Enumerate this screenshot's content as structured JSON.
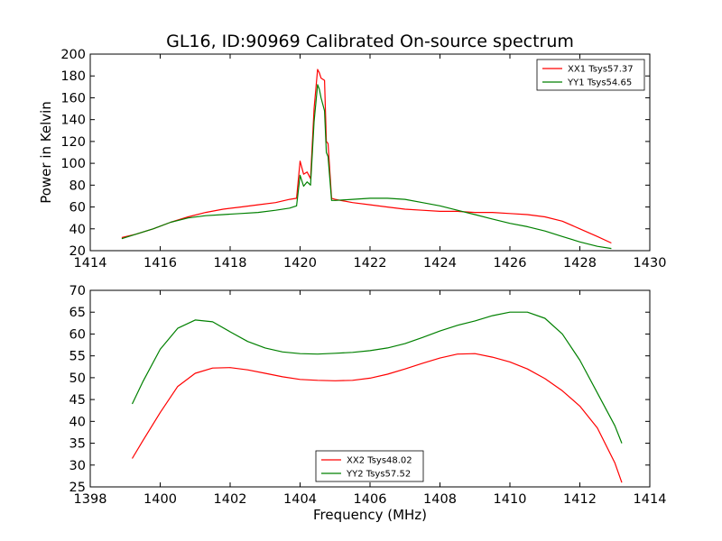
{
  "chart_data": [
    {
      "type": "line",
      "title": "GL16, ID:90969 Calibrated On-source spectrum",
      "xlabel": "",
      "ylabel": "Power in Kelvin",
      "xlim": [
        1414,
        1430
      ],
      "ylim": [
        20,
        200
      ],
      "xticks": [
        "1414",
        "1416",
        "1418",
        "1420",
        "1422",
        "1424",
        "1426",
        "1428",
        "1430"
      ],
      "yticks": [
        "20",
        "40",
        "60",
        "80",
        "100",
        "120",
        "140",
        "160",
        "180",
        "200"
      ],
      "grid": false,
      "legend_position": "upper right",
      "series": [
        {
          "name": "XX1 Tsys57.37",
          "color": "#ff0000",
          "points": [
            [
              1414.9,
              32
            ],
            [
              1415.3,
              35
            ],
            [
              1415.8,
              40
            ],
            [
              1416.3,
              46
            ],
            [
              1416.8,
              51
            ],
            [
              1417.3,
              55
            ],
            [
              1417.8,
              58
            ],
            [
              1418.3,
              60
            ],
            [
              1418.8,
              62
            ],
            [
              1419.3,
              64
            ],
            [
              1419.7,
              67
            ],
            [
              1419.9,
              68
            ],
            [
              1420.0,
              102
            ],
            [
              1420.1,
              90
            ],
            [
              1420.2,
              92
            ],
            [
              1420.3,
              86
            ],
            [
              1420.4,
              150
            ],
            [
              1420.5,
              186
            ],
            [
              1420.55,
              183
            ],
            [
              1420.6,
              178
            ],
            [
              1420.7,
              176
            ],
            [
              1420.75,
              120
            ],
            [
              1420.8,
              118
            ],
            [
              1420.9,
              68
            ],
            [
              1421.0,
              67
            ],
            [
              1421.5,
              64
            ],
            [
              1422.0,
              62
            ],
            [
              1422.5,
              60
            ],
            [
              1423.0,
              58
            ],
            [
              1423.5,
              57
            ],
            [
              1424.0,
              56
            ],
            [
              1424.5,
              56
            ],
            [
              1425.0,
              55
            ],
            [
              1425.5,
              55
            ],
            [
              1426.0,
              54
            ],
            [
              1426.5,
              53
            ],
            [
              1427.0,
              51
            ],
            [
              1427.5,
              47
            ],
            [
              1428.0,
              40
            ],
            [
              1428.5,
              33
            ],
            [
              1428.9,
              27
            ]
          ]
        },
        {
          "name": "YY1 Tsys54.65",
          "color": "#008000",
          "points": [
            [
              1414.9,
              31
            ],
            [
              1415.3,
              35
            ],
            [
              1415.8,
              40
            ],
            [
              1416.3,
              46
            ],
            [
              1416.8,
              50
            ],
            [
              1417.3,
              52
            ],
            [
              1417.8,
              53
            ],
            [
              1418.3,
              54
            ],
            [
              1418.8,
              55
            ],
            [
              1419.3,
              57
            ],
            [
              1419.7,
              59
            ],
            [
              1419.9,
              61
            ],
            [
              1420.0,
              89
            ],
            [
              1420.1,
              79
            ],
            [
              1420.2,
              83
            ],
            [
              1420.3,
              80
            ],
            [
              1420.4,
              138
            ],
            [
              1420.5,
              172
            ],
            [
              1420.55,
              168
            ],
            [
              1420.6,
              160
            ],
            [
              1420.7,
              148
            ],
            [
              1420.75,
              110
            ],
            [
              1420.8,
              106
            ],
            [
              1420.9,
              66
            ],
            [
              1421.0,
              66
            ],
            [
              1421.5,
              67
            ],
            [
              1422.0,
              68
            ],
            [
              1422.5,
              68
            ],
            [
              1423.0,
              67
            ],
            [
              1423.5,
              64
            ],
            [
              1424.0,
              61
            ],
            [
              1424.5,
              57
            ],
            [
              1425.0,
              53
            ],
            [
              1425.5,
              49
            ],
            [
              1426.0,
              45
            ],
            [
              1426.5,
              42
            ],
            [
              1427.0,
              38
            ],
            [
              1427.5,
              33
            ],
            [
              1428.0,
              28
            ],
            [
              1428.5,
              24
            ],
            [
              1428.9,
              22
            ]
          ]
        }
      ]
    },
    {
      "type": "line",
      "title": "",
      "xlabel": "Frequency (MHz)",
      "ylabel": "",
      "xlim": [
        1398,
        1414
      ],
      "ylim": [
        25,
        70
      ],
      "xticks": [
        "1398",
        "1400",
        "1402",
        "1404",
        "1406",
        "1408",
        "1410",
        "1412",
        "1414"
      ],
      "yticks": [
        "25",
        "30",
        "35",
        "40",
        "45",
        "50",
        "55",
        "60",
        "65",
        "70"
      ],
      "grid": false,
      "legend_position": "lower center",
      "series": [
        {
          "name": "XX2 Tsys48.02",
          "color": "#ff0000",
          "points": [
            [
              1399.2,
              31.5
            ],
            [
              1399.5,
              35.5
            ],
            [
              1400.0,
              42
            ],
            [
              1400.5,
              48
            ],
            [
              1401.0,
              51
            ],
            [
              1401.5,
              52.2
            ],
            [
              1402.0,
              52.3
            ],
            [
              1402.5,
              51.8
            ],
            [
              1403.0,
              51
            ],
            [
              1403.5,
              50.2
            ],
            [
              1404.0,
              49.6
            ],
            [
              1404.5,
              49.4
            ],
            [
              1405.0,
              49.3
            ],
            [
              1405.5,
              49.4
            ],
            [
              1406.0,
              49.9
            ],
            [
              1406.5,
              50.8
            ],
            [
              1407.0,
              52
            ],
            [
              1407.5,
              53.3
            ],
            [
              1408.0,
              54.5
            ],
            [
              1408.5,
              55.4
            ],
            [
              1409.0,
              55.5
            ],
            [
              1409.5,
              54.7
            ],
            [
              1410.0,
              53.6
            ],
            [
              1410.5,
              52
            ],
            [
              1411.0,
              49.8
            ],
            [
              1411.5,
              47
            ],
            [
              1412.0,
              43.5
            ],
            [
              1412.5,
              38.5
            ],
            [
              1413.0,
              30.5
            ],
            [
              1413.2,
              26
            ]
          ]
        },
        {
          "name": "YY2 Tsys57.52",
          "color": "#008000",
          "points": [
            [
              1399.2,
              44
            ],
            [
              1399.5,
              49
            ],
            [
              1400.0,
              56.5
            ],
            [
              1400.5,
              61.3
            ],
            [
              1401.0,
              63.2
            ],
            [
              1401.5,
              62.8
            ],
            [
              1402.0,
              60.5
            ],
            [
              1402.5,
              58.3
            ],
            [
              1403.0,
              56.8
            ],
            [
              1403.5,
              55.9
            ],
            [
              1404.0,
              55.5
            ],
            [
              1404.5,
              55.4
            ],
            [
              1405.0,
              55.6
            ],
            [
              1405.5,
              55.8
            ],
            [
              1406.0,
              56.2
            ],
            [
              1406.5,
              56.8
            ],
            [
              1407.0,
              57.8
            ],
            [
              1407.5,
              59.2
            ],
            [
              1408.0,
              60.7
            ],
            [
              1408.5,
              62
            ],
            [
              1409.0,
              63
            ],
            [
              1409.5,
              64.2
            ],
            [
              1410.0,
              65
            ],
            [
              1410.5,
              65
            ],
            [
              1411.0,
              63.6
            ],
            [
              1411.5,
              60
            ],
            [
              1412.0,
              54
            ],
            [
              1412.5,
              46.5
            ],
            [
              1413.0,
              39
            ],
            [
              1413.2,
              35
            ]
          ]
        }
      ]
    }
  ]
}
